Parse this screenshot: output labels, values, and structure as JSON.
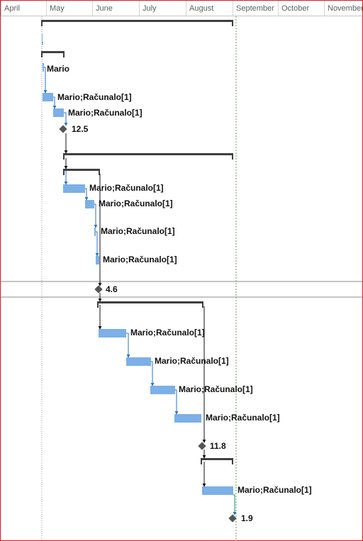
{
  "timescale": {
    "months": [
      "April",
      "May",
      "June",
      "July",
      "August",
      "September",
      "October",
      "November"
    ]
  },
  "tasks": {
    "resource_labels": [
      "Mario",
      "Mario;Računalo[1]",
      "Mario;Računalo[1]",
      "Mario;Računalo[1]",
      "Mario;Računalo[1]",
      "Mario;Računalo[1]",
      "Mario;Računalo[1]",
      "Mario;Računalo[1]",
      "Mario;Računalo[1]",
      "Mario;Računalo[1]",
      "Mario;Računalo[1]",
      "Mario;Računalo[1]"
    ],
    "milestone_labels": [
      "12.5",
      "4.6",
      "11.8",
      "1.9"
    ]
  },
  "colors": {
    "task_bar": "#7cb0e6",
    "link": "#2c72c7",
    "summary": "#3f3f3f",
    "milestone": "#555555",
    "frame": "#d71921"
  }
}
